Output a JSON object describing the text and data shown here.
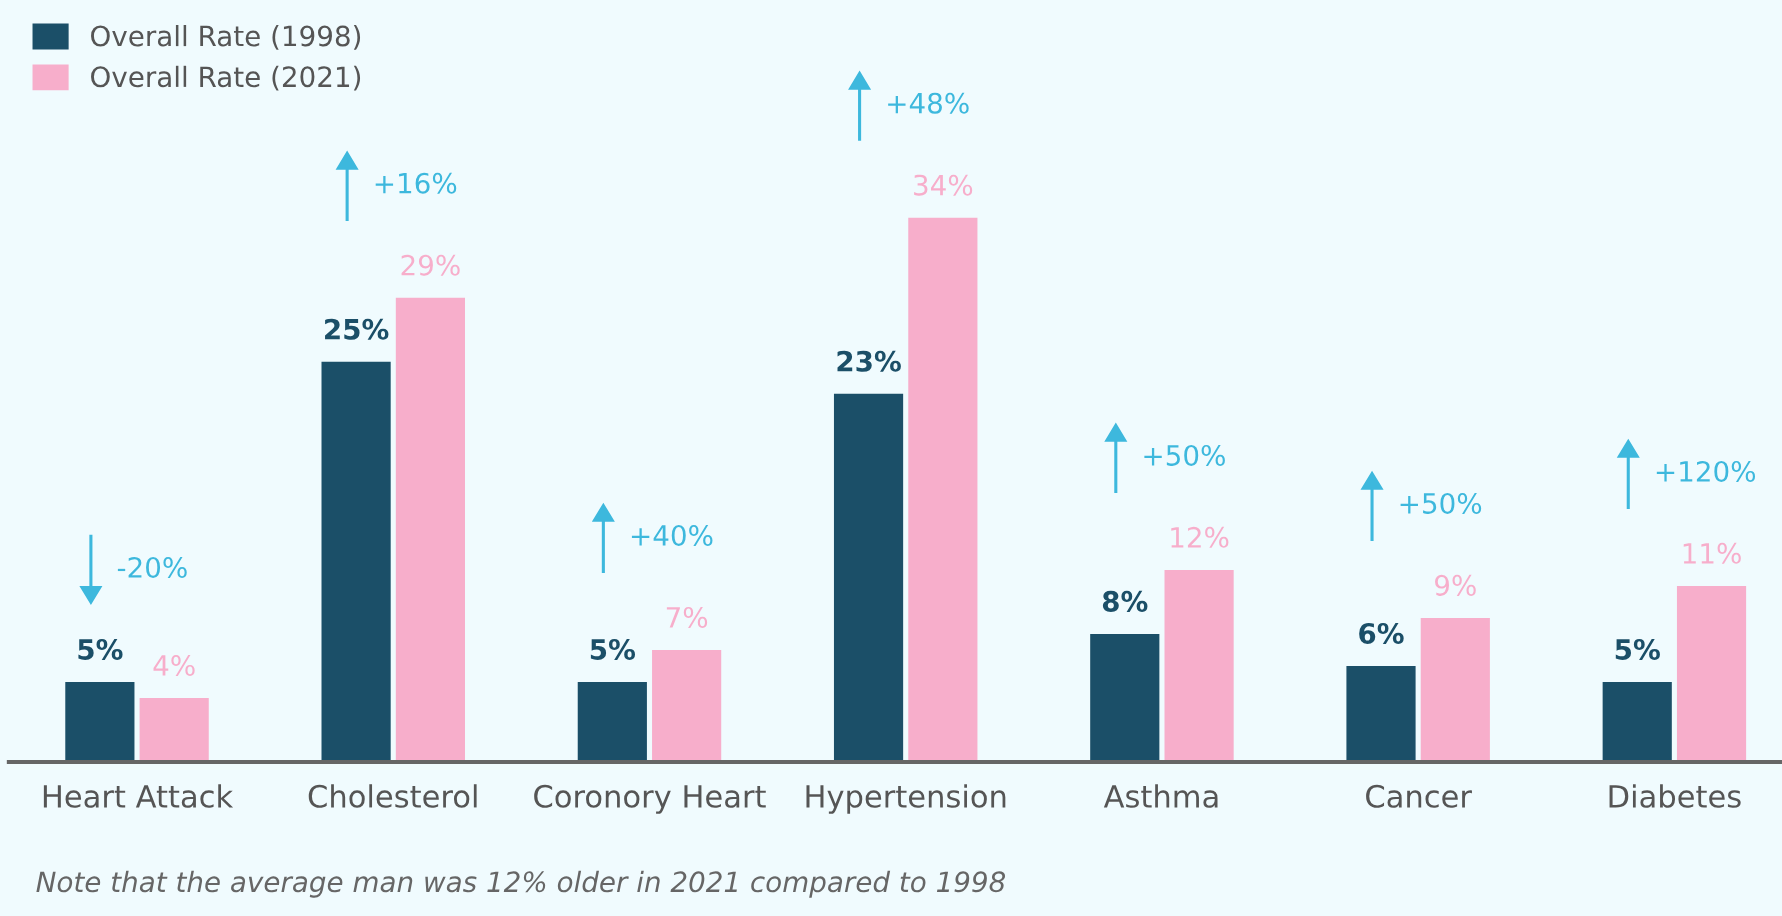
{
  "chart_data": {
    "type": "bar",
    "categories": [
      "Heart Attack",
      "Cholesterol",
      "Coronory Heart",
      "Hypertension",
      "Asthma",
      "Cancer",
      "Diabetes"
    ],
    "series": [
      {
        "name": "Overall Rate (1998)",
        "color": "#1b4f68",
        "values": [
          5,
          25,
          5,
          23,
          8,
          6,
          5
        ],
        "value_labels": [
          "5%",
          "25%",
          "5%",
          "23%",
          "8%",
          "6%",
          "5%"
        ]
      },
      {
        "name": "Overall Rate (2021)",
        "color": "#f7aecb",
        "values": [
          4,
          29,
          7,
          34,
          12,
          9,
          11
        ],
        "value_labels": [
          "4%",
          "29%",
          "7%",
          "34%",
          "12%",
          "9%",
          "11%"
        ]
      }
    ],
    "annotations": [
      "-20%",
      "+16%",
      "+40%",
      "+48%",
      "+50%",
      "+50%",
      "+120%",
      "Note that the average man was 12% older in 2021 compared to 1998"
    ],
    "legend": "top left"
  }
}
